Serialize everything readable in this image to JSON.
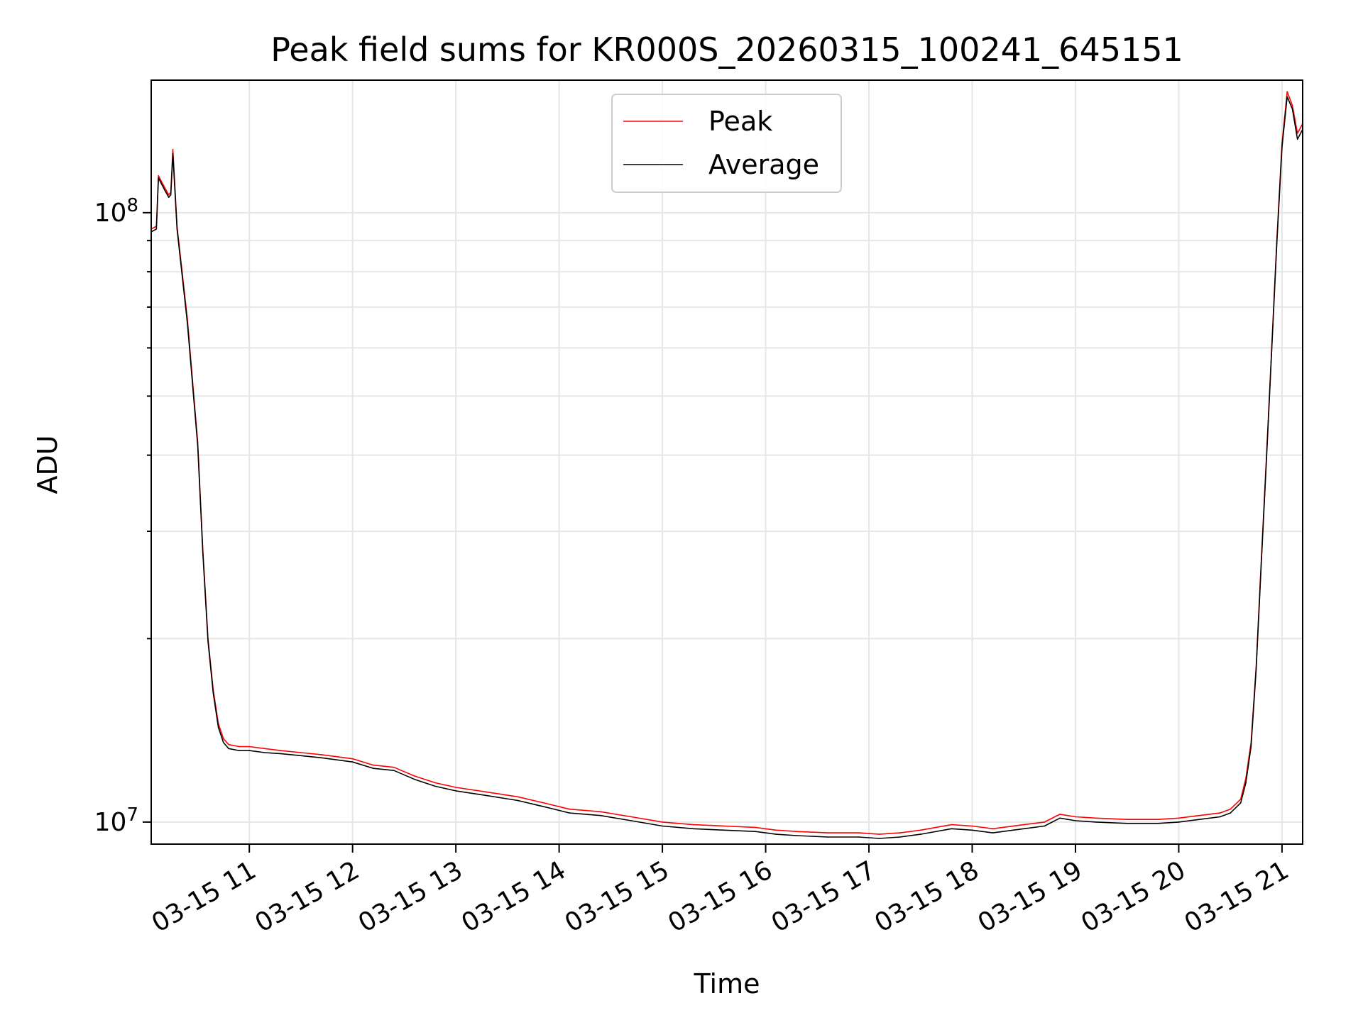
{
  "chart_data": {
    "type": "line",
    "title": "Peak field sums for KR000S_20260315_100241_645151",
    "xlabel": "Time",
    "ylabel": "ADU",
    "yscale": "log",
    "ylim": [
      9200000,
      165000000
    ],
    "xlim_hours": [
      10.05,
      21.2
    ],
    "grid": true,
    "legend_position": "upper center",
    "x_tick_hours": [
      11,
      12,
      13,
      14,
      15,
      16,
      17,
      18,
      19,
      20,
      21
    ],
    "x_tick_labels": [
      "03-15 11",
      "03-15 12",
      "03-15 13",
      "03-15 14",
      "03-15 15",
      "03-15 16",
      "03-15 17",
      "03-15 18",
      "03-15 19",
      "03-15 20",
      "03-15 21"
    ],
    "y_major_ticks": [
      10000000,
      100000000
    ],
    "y_major_tick_labels": [
      "10^7",
      "10^8"
    ],
    "y_minor_ticks": [
      20000000,
      30000000,
      40000000,
      50000000,
      60000000,
      70000000,
      80000000,
      90000000
    ],
    "series": [
      {
        "name": "Peak",
        "label": "Peak",
        "color": "#ff0000",
        "x": [
          10.05,
          10.1,
          10.12,
          10.18,
          10.22,
          10.24,
          10.26,
          10.3,
          10.4,
          10.5,
          10.55,
          10.6,
          10.65,
          10.7,
          10.75,
          10.8,
          10.9,
          11.0,
          11.15,
          11.3,
          11.5,
          11.7,
          12.0,
          12.2,
          12.4,
          12.6,
          12.8,
          13.0,
          13.3,
          13.6,
          13.9,
          14.1,
          14.4,
          14.7,
          15.0,
          15.3,
          15.6,
          15.9,
          16.1,
          16.3,
          16.6,
          16.9,
          17.1,
          17.3,
          17.5,
          17.8,
          18.0,
          18.2,
          18.5,
          18.7,
          18.85,
          19.0,
          19.2,
          19.5,
          19.8,
          20.0,
          20.2,
          20.4,
          20.5,
          20.6,
          20.65,
          20.7,
          20.75,
          20.8,
          20.85,
          20.9,
          20.95,
          21.0,
          21.05,
          21.1,
          21.15,
          21.2
        ],
        "y": [
          94000000,
          95000000,
          115000000,
          110000000,
          107000000,
          108000000,
          127000000,
          95000000,
          67000000,
          42000000,
          28000000,
          20000000,
          16500000,
          14500000,
          13700000,
          13400000,
          13300000,
          13300000,
          13200000,
          13100000,
          13000000,
          12900000,
          12700000,
          12400000,
          12300000,
          11900000,
          11600000,
          11400000,
          11200000,
          11000000,
          10700000,
          10500000,
          10400000,
          10200000,
          10000000,
          9900000,
          9850000,
          9800000,
          9700000,
          9650000,
          9600000,
          9600000,
          9550000,
          9600000,
          9700000,
          9900000,
          9850000,
          9750000,
          9900000,
          10000000,
          10300000,
          10200000,
          10150000,
          10100000,
          10100000,
          10150000,
          10250000,
          10350000,
          10500000,
          10900000,
          11800000,
          13500000,
          18000000,
          27000000,
          40000000,
          60000000,
          90000000,
          130000000,
          158000000,
          150000000,
          135000000,
          140000000
        ]
      },
      {
        "name": "Average",
        "label": "Average",
        "color": "#000000",
        "x": [
          10.05,
          10.1,
          10.12,
          10.18,
          10.22,
          10.24,
          10.26,
          10.3,
          10.4,
          10.5,
          10.55,
          10.6,
          10.65,
          10.7,
          10.75,
          10.8,
          10.9,
          11.0,
          11.15,
          11.3,
          11.5,
          11.7,
          12.0,
          12.2,
          12.4,
          12.6,
          12.8,
          13.0,
          13.3,
          13.6,
          13.9,
          14.1,
          14.4,
          14.7,
          15.0,
          15.3,
          15.6,
          15.9,
          16.1,
          16.3,
          16.6,
          16.9,
          17.1,
          17.3,
          17.5,
          17.8,
          18.0,
          18.2,
          18.5,
          18.7,
          18.85,
          19.0,
          19.2,
          19.5,
          19.8,
          20.0,
          20.2,
          20.4,
          20.5,
          20.6,
          20.65,
          20.7,
          20.75,
          20.8,
          20.85,
          20.9,
          20.95,
          21.0,
          21.05,
          21.1,
          21.15,
          21.2
        ],
        "y": [
          93000000,
          94000000,
          114000000,
          109000000,
          106000000,
          107000000,
          125000000,
          94000000,
          66000000,
          41500000,
          27700000,
          19800000,
          16300000,
          14300000,
          13500000,
          13200000,
          13100000,
          13100000,
          13000000,
          12950000,
          12850000,
          12750000,
          12550000,
          12250000,
          12150000,
          11750000,
          11450000,
          11250000,
          11050000,
          10850000,
          10550000,
          10350000,
          10250000,
          10050000,
          9850000,
          9750000,
          9700000,
          9650000,
          9550000,
          9500000,
          9450000,
          9450000,
          9400000,
          9450000,
          9550000,
          9750000,
          9700000,
          9600000,
          9750000,
          9850000,
          10150000,
          10050000,
          10000000,
          9950000,
          9950000,
          10000000,
          10100000,
          10200000,
          10350000,
          10750000,
          11600000,
          13300000,
          17800000,
          26700000,
          39500000,
          59500000,
          89000000,
          128000000,
          155000000,
          148000000,
          132000000,
          137000000
        ]
      }
    ]
  }
}
